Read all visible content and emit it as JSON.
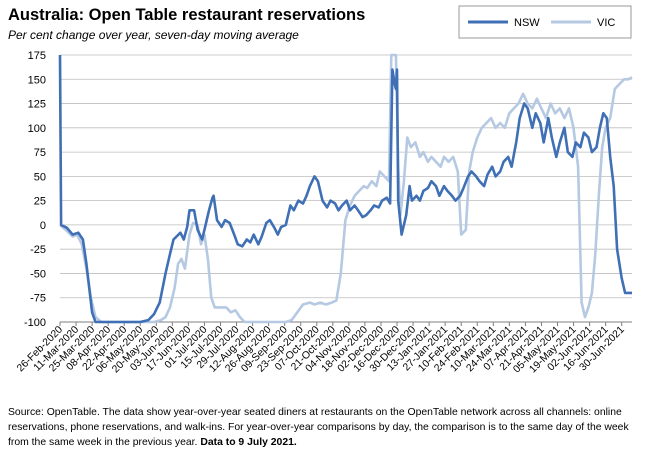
{
  "chart_data": {
    "type": "line",
    "title": "Australia: Open Table restaurant reservations",
    "subtitle": "Per cent change over year, seven-day moving average",
    "xlabel": "",
    "ylabel": "",
    "ylim": [
      -100,
      175
    ],
    "yticks": [
      -100,
      -75,
      -50,
      -25,
      0,
      25,
      50,
      75,
      100,
      125,
      150,
      175
    ],
    "yticklabels": [
      "-100",
      "-75",
      "-50",
      "-25",
      "0",
      "25",
      "50",
      "75",
      "100",
      "125",
      "150",
      "175"
    ],
    "xlim": [
      "2020-02-26",
      "2021-07-09"
    ],
    "xticks": [
      "2020-02-26",
      "2020-03-11",
      "2020-03-25",
      "2020-04-08",
      "2020-04-22",
      "2020-05-06",
      "2020-05-20",
      "2020-06-03",
      "2020-06-17",
      "2020-07-01",
      "2020-07-15",
      "2020-07-29",
      "2020-08-12",
      "2020-08-26",
      "2020-09-09",
      "2020-09-23",
      "2020-10-07",
      "2020-10-21",
      "2020-11-04",
      "2020-11-18",
      "2020-12-02",
      "2020-12-16",
      "2020-12-30",
      "2021-01-13",
      "2021-01-27",
      "2021-02-10",
      "2021-02-24",
      "2021-03-10",
      "2021-03-24",
      "2021-04-07",
      "2021-04-21",
      "2021-05-05",
      "2021-05-19",
      "2021-06-02",
      "2021-06-16",
      "2021-06-30"
    ],
    "xticklabels": [
      "26-Feb-2020",
      "11-Mar-2020",
      "25-Mar-2020",
      "08-Apr-2020",
      "22-Apr-2020",
      "06-May-2020",
      "20-May-2020",
      "03-Jun-2020",
      "17-Jun-2020",
      "01-Jul-2020",
      "15-Jul-2020",
      "29-Jul-2020",
      "12-Aug-2020",
      "26-Aug-2020",
      "09-Sep-2020",
      "23-Sep-2020",
      "07-Oct-2020",
      "21-Oct-2020",
      "04-Nov-2020",
      "18-Nov-2020",
      "02-Dec-2020",
      "16-Dec-2020",
      "30-Dec-2020",
      "13-Jan-2021",
      "27-Jan-2021",
      "10-Feb-2021",
      "24-Feb-2021",
      "10-Mar-2021",
      "24-Mar-2021",
      "07-Apr-2021",
      "21-Apr-2021",
      "05-May-2021",
      "19-May-2021",
      "02-Jun-2021",
      "16-Jun-2021",
      "30-Jun-2021"
    ],
    "grid": true,
    "legend": "top-right",
    "series": [
      {
        "name": "NSW",
        "color": "#3f6fb5",
        "points": [
          [
            "2020-02-26",
            175
          ],
          [
            "2020-02-27",
            0
          ],
          [
            "2020-03-03",
            -3
          ],
          [
            "2020-03-08",
            -10
          ],
          [
            "2020-03-13",
            -8
          ],
          [
            "2020-03-17",
            -15
          ],
          [
            "2020-03-20",
            -40
          ],
          [
            "2020-03-25",
            -90
          ],
          [
            "2020-03-28",
            -100
          ],
          [
            "2020-04-01",
            -100
          ],
          [
            "2020-04-20",
            -100
          ],
          [
            "2020-05-06",
            -100
          ],
          [
            "2020-05-13",
            -98
          ],
          [
            "2020-05-18",
            -92
          ],
          [
            "2020-05-23",
            -80
          ],
          [
            "2020-05-28",
            -50
          ],
          [
            "2020-06-01",
            -30
          ],
          [
            "2020-06-04",
            -15
          ],
          [
            "2020-06-10",
            -8
          ],
          [
            "2020-06-13",
            -15
          ],
          [
            "2020-06-16",
            -2
          ],
          [
            "2020-06-18",
            15
          ],
          [
            "2020-06-22",
            15
          ],
          [
            "2020-06-25",
            -5
          ],
          [
            "2020-06-29",
            -15
          ],
          [
            "2020-07-02",
            0
          ],
          [
            "2020-07-05",
            15
          ],
          [
            "2020-07-08",
            28
          ],
          [
            "2020-07-09",
            30
          ],
          [
            "2020-07-12",
            5
          ],
          [
            "2020-07-16",
            -2
          ],
          [
            "2020-07-19",
            5
          ],
          [
            "2020-07-23",
            2
          ],
          [
            "2020-07-27",
            -10
          ],
          [
            "2020-07-30",
            -20
          ],
          [
            "2020-08-03",
            -22
          ],
          [
            "2020-08-07",
            -15
          ],
          [
            "2020-08-10",
            -18
          ],
          [
            "2020-08-13",
            -10
          ],
          [
            "2020-08-17",
            -20
          ],
          [
            "2020-08-20",
            -12
          ],
          [
            "2020-08-24",
            2
          ],
          [
            "2020-08-27",
            5
          ],
          [
            "2020-08-31",
            -3
          ],
          [
            "2020-09-03",
            -10
          ],
          [
            "2020-09-06",
            -2
          ],
          [
            "2020-09-10",
            0
          ],
          [
            "2020-09-14",
            20
          ],
          [
            "2020-09-17",
            15
          ],
          [
            "2020-09-21",
            25
          ],
          [
            "2020-09-25",
            22
          ],
          [
            "2020-09-28",
            30
          ],
          [
            "2020-10-01",
            40
          ],
          [
            "2020-10-05",
            50
          ],
          [
            "2020-10-08",
            45
          ],
          [
            "2020-10-12",
            25
          ],
          [
            "2020-10-16",
            18
          ],
          [
            "2020-10-19",
            25
          ],
          [
            "2020-10-23",
            22
          ],
          [
            "2020-10-26",
            15
          ],
          [
            "2020-10-29",
            20
          ],
          [
            "2020-11-02",
            25
          ],
          [
            "2020-11-05",
            15
          ],
          [
            "2020-11-09",
            20
          ],
          [
            "2020-11-12",
            15
          ],
          [
            "2020-11-16",
            8
          ],
          [
            "2020-11-19",
            10
          ],
          [
            "2020-11-23",
            15
          ],
          [
            "2020-11-26",
            20
          ],
          [
            "2020-11-30",
            18
          ],
          [
            "2020-12-03",
            25
          ],
          [
            "2020-12-07",
            28
          ],
          [
            "2020-12-10",
            22
          ],
          [
            "2020-12-12",
            160
          ],
          [
            "2020-12-14",
            145
          ],
          [
            "2020-12-15",
            140
          ],
          [
            "2020-12-16",
            160
          ],
          [
            "2020-12-17",
            25
          ],
          [
            "2020-12-20",
            -10
          ],
          [
            "2020-12-24",
            10
          ],
          [
            "2020-12-27",
            40
          ],
          [
            "2020-12-29",
            25
          ],
          [
            "2021-01-02",
            30
          ],
          [
            "2021-01-05",
            25
          ],
          [
            "2021-01-08",
            35
          ],
          [
            "2021-01-12",
            38
          ],
          [
            "2021-01-15",
            45
          ],
          [
            "2021-01-19",
            40
          ],
          [
            "2021-01-22",
            30
          ],
          [
            "2021-01-26",
            40
          ],
          [
            "2021-01-29",
            35
          ],
          [
            "2021-02-02",
            30
          ],
          [
            "2021-02-05",
            25
          ],
          [
            "2021-02-09",
            30
          ],
          [
            "2021-02-12",
            38
          ],
          [
            "2021-02-16",
            50
          ],
          [
            "2021-02-19",
            55
          ],
          [
            "2021-02-23",
            50
          ],
          [
            "2021-02-26",
            45
          ],
          [
            "2021-03-02",
            40
          ],
          [
            "2021-03-05",
            52
          ],
          [
            "2021-03-09",
            60
          ],
          [
            "2021-03-12",
            50
          ],
          [
            "2021-03-16",
            55
          ],
          [
            "2021-03-19",
            65
          ],
          [
            "2021-03-23",
            70
          ],
          [
            "2021-03-26",
            60
          ],
          [
            "2021-03-30",
            85
          ],
          [
            "2021-04-02",
            110
          ],
          [
            "2021-04-06",
            125
          ],
          [
            "2021-04-09",
            120
          ],
          [
            "2021-04-13",
            100
          ],
          [
            "2021-04-16",
            115
          ],
          [
            "2021-04-20",
            105
          ],
          [
            "2021-04-23",
            85
          ],
          [
            "2021-04-27",
            110
          ],
          [
            "2021-04-30",
            90
          ],
          [
            "2021-05-04",
            70
          ],
          [
            "2021-05-07",
            85
          ],
          [
            "2021-05-11",
            100
          ],
          [
            "2021-05-14",
            75
          ],
          [
            "2021-05-18",
            70
          ],
          [
            "2021-05-21",
            85
          ],
          [
            "2021-05-25",
            80
          ],
          [
            "2021-05-28",
            95
          ],
          [
            "2021-06-01",
            90
          ],
          [
            "2021-06-04",
            75
          ],
          [
            "2021-06-08",
            80
          ],
          [
            "2021-06-11",
            100
          ],
          [
            "2021-06-14",
            115
          ],
          [
            "2021-06-17",
            110
          ],
          [
            "2021-06-20",
            70
          ],
          [
            "2021-06-23",
            40
          ],
          [
            "2021-06-26",
            -25
          ],
          [
            "2021-06-30",
            -55
          ],
          [
            "2021-07-03",
            -70
          ],
          [
            "2021-07-09",
            -70
          ]
        ]
      },
      {
        "name": "VIC",
        "color": "#b5c9e2",
        "points": [
          [
            "2020-02-26",
            0
          ],
          [
            "2020-03-02",
            -5
          ],
          [
            "2020-03-08",
            -12
          ],
          [
            "2020-03-12",
            -10
          ],
          [
            "2020-03-16",
            -20
          ],
          [
            "2020-03-20",
            -45
          ],
          [
            "2020-03-24",
            -75
          ],
          [
            "2020-03-28",
            -95
          ],
          [
            "2020-04-02",
            -100
          ],
          [
            "2020-05-18",
            -100
          ],
          [
            "2020-05-24",
            -98
          ],
          [
            "2020-05-28",
            -95
          ],
          [
            "2020-06-01",
            -85
          ],
          [
            "2020-06-05",
            -65
          ],
          [
            "2020-06-08",
            -40
          ],
          [
            "2020-06-11",
            -35
          ],
          [
            "2020-06-14",
            -45
          ],
          [
            "2020-06-18",
            -10
          ],
          [
            "2020-06-21",
            2
          ],
          [
            "2020-06-25",
            0
          ],
          [
            "2020-06-28",
            -20
          ],
          [
            "2020-07-01",
            -10
          ],
          [
            "2020-07-04",
            -35
          ],
          [
            "2020-07-07",
            -75
          ],
          [
            "2020-07-10",
            -85
          ],
          [
            "2020-07-20",
            -85
          ],
          [
            "2020-07-24",
            -90
          ],
          [
            "2020-07-28",
            -88
          ],
          [
            "2020-08-01",
            -95
          ],
          [
            "2020-08-05",
            -100
          ],
          [
            "2020-09-10",
            -100
          ],
          [
            "2020-09-15",
            -98
          ],
          [
            "2020-09-20",
            -90
          ],
          [
            "2020-09-25",
            -82
          ],
          [
            "2020-10-01",
            -80
          ],
          [
            "2020-10-05",
            -82
          ],
          [
            "2020-10-10",
            -80
          ],
          [
            "2020-10-15",
            -82
          ],
          [
            "2020-10-20",
            -80
          ],
          [
            "2020-10-24",
            -78
          ],
          [
            "2020-10-28",
            -50
          ],
          [
            "2020-11-01",
            5
          ],
          [
            "2020-11-05",
            20
          ],
          [
            "2020-11-09",
            30
          ],
          [
            "2020-11-13",
            35
          ],
          [
            "2020-11-17",
            40
          ],
          [
            "2020-11-20",
            38
          ],
          [
            "2020-11-24",
            45
          ],
          [
            "2020-11-28",
            40
          ],
          [
            "2020-12-01",
            55
          ],
          [
            "2020-12-05",
            50
          ],
          [
            "2020-12-09",
            45
          ],
          [
            "2020-12-11",
            175
          ],
          [
            "2020-12-15",
            175
          ],
          [
            "2020-12-17",
            60
          ],
          [
            "2020-12-19",
            10
          ],
          [
            "2020-12-22",
            45
          ],
          [
            "2020-12-25",
            90
          ],
          [
            "2020-12-28",
            80
          ],
          [
            "2021-01-01",
            85
          ],
          [
            "2021-01-05",
            70
          ],
          [
            "2021-01-08",
            75
          ],
          [
            "2021-01-12",
            65
          ],
          [
            "2021-01-15",
            70
          ],
          [
            "2021-01-19",
            65
          ],
          [
            "2021-01-23",
            60
          ],
          [
            "2021-01-26",
            70
          ],
          [
            "2021-01-30",
            65
          ],
          [
            "2021-02-03",
            70
          ],
          [
            "2021-02-07",
            55
          ],
          [
            "2021-02-10",
            -10
          ],
          [
            "2021-02-14",
            -5
          ],
          [
            "2021-02-17",
            55
          ],
          [
            "2021-02-20",
            75
          ],
          [
            "2021-02-24",
            90
          ],
          [
            "2021-02-28",
            100
          ],
          [
            "2021-03-04",
            105
          ],
          [
            "2021-03-08",
            110
          ],
          [
            "2021-03-12",
            100
          ],
          [
            "2021-03-16",
            105
          ],
          [
            "2021-03-20",
            100
          ],
          [
            "2021-03-24",
            115
          ],
          [
            "2021-03-28",
            120
          ],
          [
            "2021-04-01",
            125
          ],
          [
            "2021-04-05",
            135
          ],
          [
            "2021-04-09",
            125
          ],
          [
            "2021-04-13",
            120
          ],
          [
            "2021-04-17",
            130
          ],
          [
            "2021-04-21",
            120
          ],
          [
            "2021-04-25",
            110
          ],
          [
            "2021-04-29",
            125
          ],
          [
            "2021-05-03",
            115
          ],
          [
            "2021-05-07",
            120
          ],
          [
            "2021-05-11",
            110
          ],
          [
            "2021-05-15",
            120
          ],
          [
            "2021-05-19",
            100
          ],
          [
            "2021-05-23",
            60
          ],
          [
            "2021-05-26",
            -80
          ],
          [
            "2021-05-29",
            -95
          ],
          [
            "2021-06-01",
            -85
          ],
          [
            "2021-06-04",
            -70
          ],
          [
            "2021-06-07",
            -30
          ],
          [
            "2021-06-10",
            30
          ],
          [
            "2021-06-13",
            80
          ],
          [
            "2021-06-16",
            100
          ],
          [
            "2021-06-20",
            110
          ],
          [
            "2021-06-24",
            140
          ],
          [
            "2021-06-28",
            145
          ],
          [
            "2021-07-02",
            150
          ],
          [
            "2021-07-06",
            150
          ],
          [
            "2021-07-09",
            152
          ]
        ]
      }
    ]
  },
  "source_text": "Source: OpenTable.  The data show year-over-year seated diners at restaurants on the OpenTable network across all channels: online reservations, phone reservations, and walk-ins. For year-over-year comparisons by day, the comparison is to the same day of the week from the same week in the previous year. ",
  "source_bold": "Data to 9 July 2021."
}
